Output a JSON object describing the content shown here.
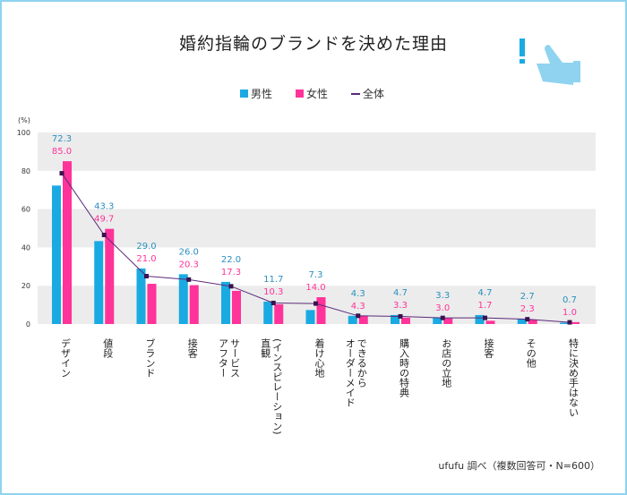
{
  "chart_data": {
    "type": "bar",
    "title": "婚約指輪のブランドを決めた理由",
    "ylabel": "(%)",
    "ylim": [
      0,
      100
    ],
    "yticks": [
      0,
      20,
      40,
      60,
      80,
      100
    ],
    "grid": "alternating bands",
    "legend_placement": "top-center",
    "categories": [
      "デザイン",
      "値段",
      "ブランド",
      "接客",
      "アフターサービス",
      "直観(インスピレーション)",
      "着け心地",
      "オーダーメイドできるから",
      "購入時の特典",
      "お店の立地",
      "接客",
      "その他",
      "特に決め手はない"
    ],
    "category_lines": [
      [
        "デザイン"
      ],
      [
        "値段"
      ],
      [
        "ブランド"
      ],
      [
        "接客"
      ],
      [
        "アフター",
        "サービス"
      ],
      [
        "直観",
        "(インスピレーション)"
      ],
      [
        "着け心地"
      ],
      [
        "オーダーメイド",
        "できるから"
      ],
      [
        "購入時の特典"
      ],
      [
        "お店の立地"
      ],
      [
        "接客"
      ],
      [
        "その他"
      ],
      [
        "特に決め手はない"
      ]
    ],
    "series": [
      {
        "name": "男性",
        "type": "bar",
        "color": "#1aaae2",
        "values": [
          72.3,
          43.3,
          29.0,
          26.0,
          22.0,
          11.7,
          7.3,
          4.3,
          4.7,
          3.3,
          4.7,
          2.7,
          0.7
        ]
      },
      {
        "name": "女性",
        "type": "bar",
        "color": "#ff3399",
        "values": [
          85.0,
          49.7,
          21.0,
          20.3,
          17.3,
          10.3,
          14.0,
          4.3,
          3.3,
          3.0,
          1.7,
          2.3,
          1.0
        ]
      },
      {
        "name": "全体",
        "type": "line",
        "color": "#5b2a7a",
        "values": [
          78.7,
          46.5,
          25.0,
          23.2,
          19.7,
          11.0,
          10.7,
          4.3,
          4.0,
          3.2,
          3.2,
          2.5,
          0.9
        ]
      }
    ],
    "label_colors": {
      "male": "#2a8fbf",
      "female": "#ff3399"
    }
  },
  "source": "ufufu 調べ（複数回答可・N=600）",
  "icon": "thumbs-up-exclamation-icon"
}
